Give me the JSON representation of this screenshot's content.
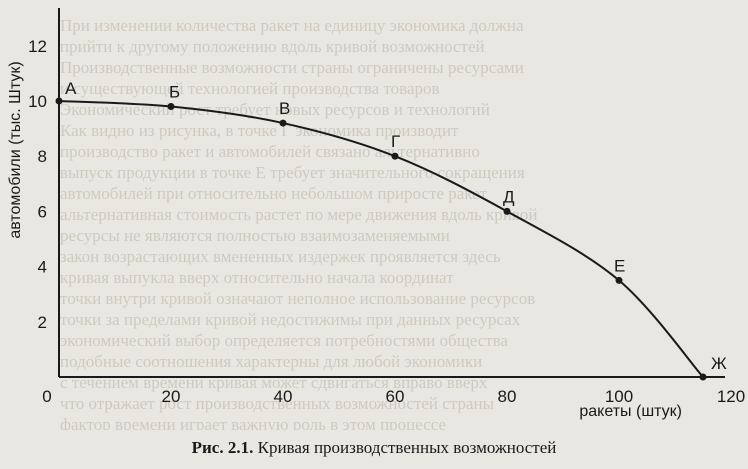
{
  "caption": {
    "number": "Рис. 2.1.",
    "text": "Кривая производственных возможностей"
  },
  "background_text": [
    "При изменении количества ракет на единицу экономика должна",
    "прийти к другому положению вдоль кривой возможностей",
    "Производственные возможности страны ограничены ресурсами",
    "и существующей технологией производства товаров",
    "Экономический рост требует новых ресурсов и технологий",
    "Как видно из рисунка, в точке Г экономика производит",
    "производство ракет и автомобилей связано альтернативно",
    "выпуск продукции в точке Е требует значительного сокращения",
    "автомобилей при относительно небольшом приросте ракет",
    "альтернативная стоимость растет по мере движения вдоль кривой",
    "ресурсы не являются полностью взаимозаменяемыми",
    "закон возрастающих вмененных издержек проявляется здесь",
    "кривая выпукла вверх относительно начала координат",
    "точки внутри кривой означают неполное использование ресурсов",
    "точки за пределами кривой недостижимы при данных ресурсах",
    "экономический выбор определяется потребностями общества",
    "подобные соотношения характерны для любой экономики",
    "с течением времени кривая может сдвигаться вправо вверх",
    "что отражает рост производственных возможностей страны",
    "фактор времени играет важную роль в этом процессе"
  ],
  "chart_data": {
    "type": "line",
    "title": "",
    "xlabel": "ракеты (штук)",
    "ylabel": "автомобили (тыс. Штук)",
    "xlim": [
      0,
      128
    ],
    "ylim": [
      0,
      13
    ],
    "x_ticks": [
      0,
      20,
      40,
      60,
      80,
      100,
      120
    ],
    "y_ticks": [
      2,
      4,
      6,
      8,
      10,
      12
    ],
    "x_tick_labels": [
      "0",
      "20",
      "40",
      "60",
      "80",
      "100",
      "120"
    ],
    "y_tick_labels": [
      "2",
      "4",
      "6",
      "8",
      "10",
      "12"
    ],
    "origin_label": "0",
    "grid": false,
    "legend": "none",
    "line_color": "#1a1a1a",
    "points": [
      {
        "label": "А",
        "x": 0,
        "y": 10
      },
      {
        "label": "Б",
        "x": 20,
        "y": 9.8
      },
      {
        "label": "В",
        "x": 40,
        "y": 9.2
      },
      {
        "label": "Г",
        "x": 60,
        "y": 8
      },
      {
        "label": "Д",
        "x": 80,
        "y": 6
      },
      {
        "label": "Е",
        "x": 100,
        "y": 3.5
      },
      {
        "label": "Ж",
        "x": 115,
        "y": 0
      }
    ]
  }
}
